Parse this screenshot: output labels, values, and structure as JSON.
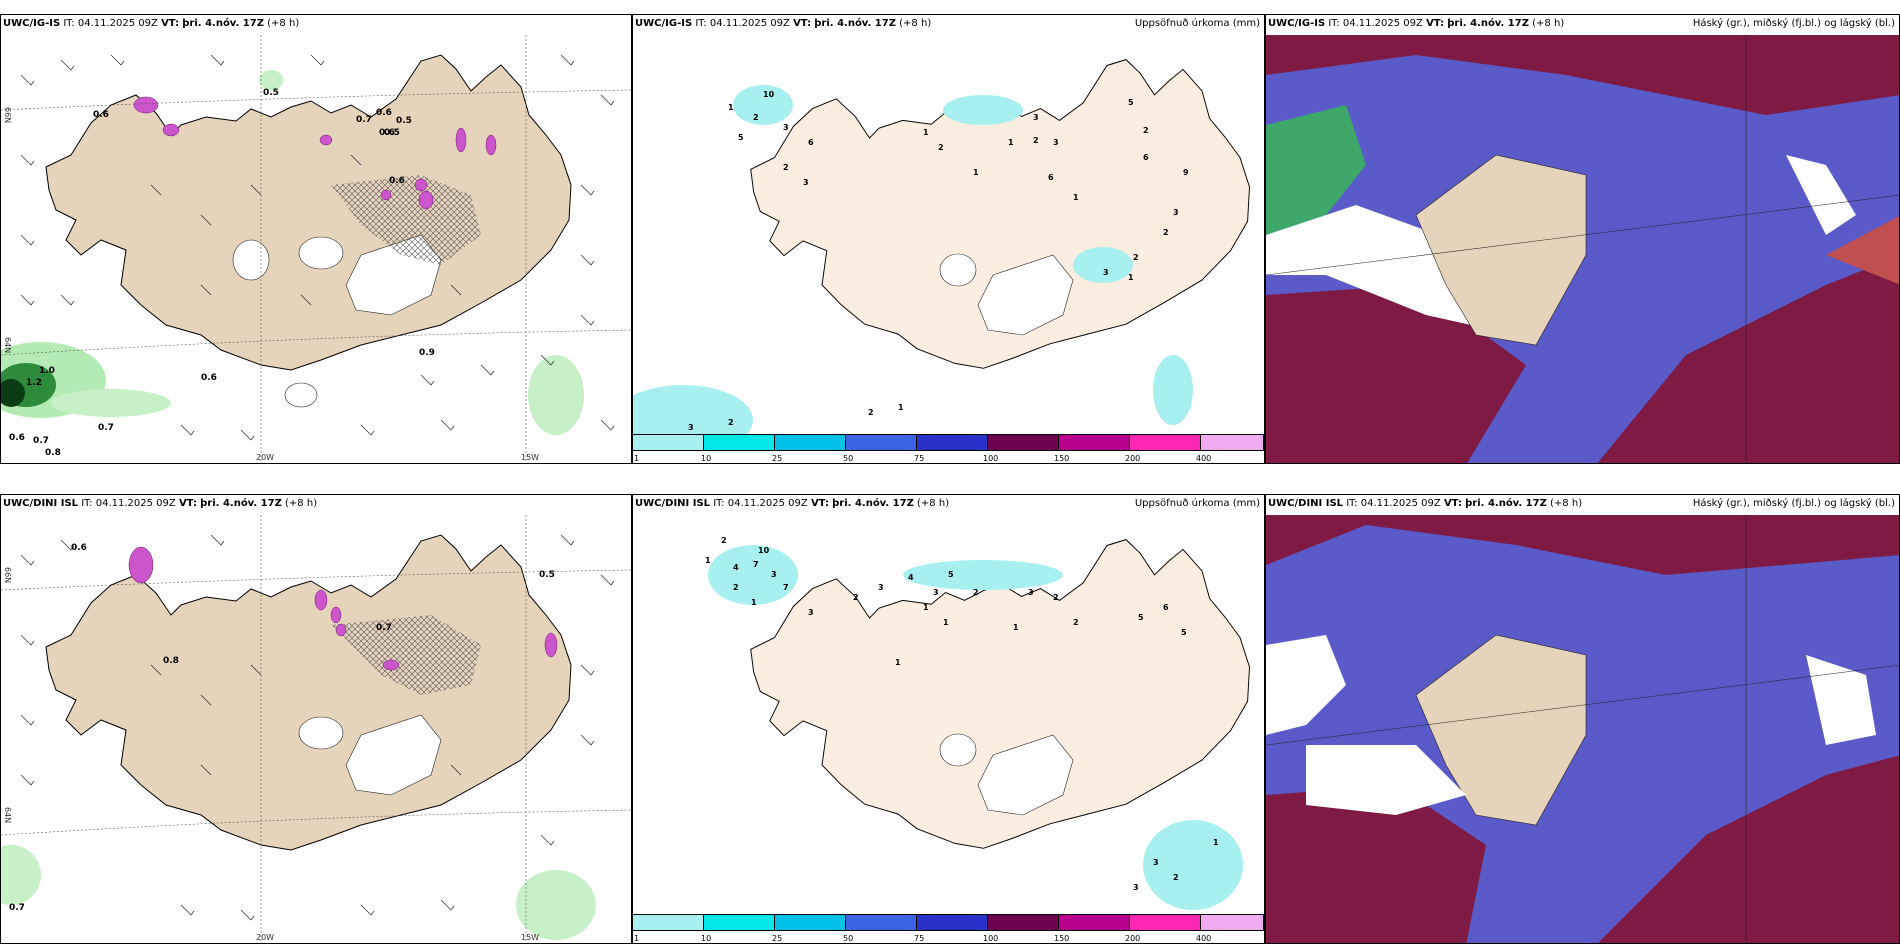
{
  "panels": [
    {
      "model": "UWC/IG-IS",
      "it_label": "IT:",
      "it": "04.11.2025 09Z",
      "vt_label": "VT:",
      "vt": "þri. 4.nóv. 17Z",
      "lead": "(+8 h)",
      "title": ""
    },
    {
      "model": "UWC/IG-IS",
      "it_label": "IT:",
      "it": "04.11.2025 09Z",
      "vt_label": "VT:",
      "vt": "þri. 4.nóv. 17Z",
      "lead": "(+8 h)",
      "title": "Uppsöfnuð úrkoma (mm)"
    },
    {
      "model": "UWC/IG-IS",
      "it_label": "IT:",
      "it": "04.11.2025 09Z",
      "vt_label": "VT:",
      "vt": "þri. 4.nóv. 17Z",
      "lead": "(+8 h)",
      "title": "Háský (gr.), miðský (fj.bl.) og lágský (bl.)"
    },
    {
      "model": "UWC/DINI ISL",
      "it_label": "IT:",
      "it": "04.11.2025 09Z",
      "vt_label": "VT:",
      "vt": "þri. 4.nóv. 17Z",
      "lead": "(+8 h)",
      "title": ""
    },
    {
      "model": "UWC/DINI ISL",
      "it_label": "IT:",
      "it": "04.11.2025 09Z",
      "vt_label": "VT:",
      "vt": "þri. 4.nóv. 17Z",
      "lead": "(+8 h)",
      "title": "Uppsöfnuð úrkoma (mm)"
    },
    {
      "model": "UWC/DINI ISL",
      "it_label": "IT:",
      "it": "04.11.2025 09Z",
      "vt_label": "VT:",
      "vt": "þri. 4.nóv. 17Z",
      "lead": "(+8 h)",
      "title": "Háský (gr.), miðský (fj.bl.) og lágský (bl.)"
    }
  ],
  "axes": {
    "lon1": "20W",
    "lon2": "15W",
    "lat1": "66N",
    "lat2": "64N"
  },
  "colorbar": {
    "ticks": [
      "1",
      "10",
      "25",
      "50",
      "75",
      "100",
      "150",
      "200",
      "400"
    ],
    "colors": [
      "#a8f0f0",
      "#00e8e8",
      "#00c0e8",
      "#3c64e6",
      "#2832c8",
      "#6e0050",
      "#b4008c",
      "#ff28b4",
      "#f0aaf0"
    ]
  },
  "wind_labels_top": [
    "0.6",
    "0.5",
    "0.7",
    "0.6",
    "0.5",
    "0.6",
    "0.6",
    "1.0",
    "1.2",
    "0.6",
    "0.7",
    "0.6",
    "0.7",
    "0.8",
    "0.9",
    "0.5"
  ],
  "wind_labels_bottom": [
    "0.6",
    "0.5",
    "0.8",
    "0.7",
    "0.7"
  ],
  "precip_labels_top": [
    "1",
    "2",
    "3",
    "5",
    "10",
    "6",
    "3",
    "2",
    "2",
    "1",
    "1",
    "1",
    "2",
    "3",
    "6",
    "9",
    "3",
    "2",
    "2",
    "1",
    "6",
    "3",
    "5",
    "2",
    "3",
    "1",
    "2",
    "1",
    "3",
    "2"
  ],
  "precip_labels_bottom": [
    "2",
    "1",
    "10",
    "7",
    "4",
    "3",
    "2",
    "1",
    "7",
    "3",
    "2",
    "3",
    "4",
    "5",
    "2",
    "3",
    "1",
    "3",
    "2",
    "1",
    "1",
    "2",
    "5",
    "6",
    "5",
    "1",
    "3",
    "2",
    "3",
    "1"
  ]
}
